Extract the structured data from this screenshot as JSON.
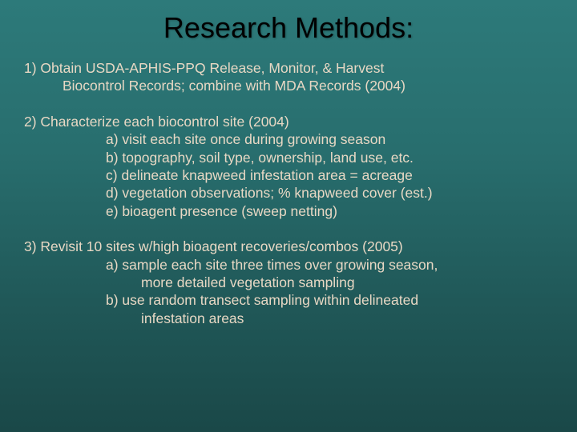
{
  "slide": {
    "title": "Research Methods:",
    "background_top": "#2d7a7a",
    "background_bottom": "#1a4848",
    "title_color": "#000000",
    "body_color": "#e8d8c4",
    "title_fontsize": 36,
    "body_fontsize": 17.5,
    "items": [
      {
        "head": "1) Obtain USDA-APHIS-PPQ Release, Monitor, & Harvest",
        "cont": "Biocontrol Records; combine with MDA Records (2004)",
        "subs": []
      },
      {
        "head": "2) Characterize each biocontrol site (2004)",
        "cont": "",
        "subs": [
          {
            "line": "a) visit each site once during growing season"
          },
          {
            "line": "b) topography, soil type, ownership, land use, etc."
          },
          {
            "line": "c) delineate knapweed infestation area = acreage"
          },
          {
            "line": "d) vegetation observations; % knapweed cover (est.)"
          },
          {
            "line": "e) bioagent presence (sweep netting)"
          }
        ]
      },
      {
        "head": "3) Revisit 10 sites w/high bioagent recoveries/combos (2005)",
        "cont": "",
        "subs": [
          {
            "line": "a) sample each site three times over growing season,",
            "cont": "more detailed vegetation sampling"
          },
          {
            "line": "b) use random transect sampling within delineated",
            "cont": "infestation areas"
          }
        ]
      }
    ]
  }
}
